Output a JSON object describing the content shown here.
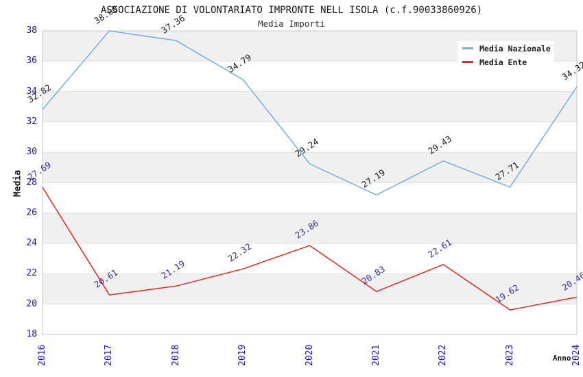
{
  "chart_data": {
    "type": "line",
    "title": "ASSOCIAZIONE DI VOLONTARIATO IMPRONTE NELL ISOLA (c.f.90033860926)",
    "subtitle": "Media Importi",
    "xlabel": "Anno",
    "ylabel": "Media",
    "x": [
      "2016",
      "2017",
      "2018",
      "2019",
      "2020",
      "2021",
      "2022",
      "2023",
      "2024"
    ],
    "series": [
      {
        "name": "Media Nazionale",
        "color": "#79ADE0",
        "label_color": "#1a1a1a",
        "values": [
          32.82,
          38.0,
          37.36,
          34.79,
          29.24,
          27.19,
          29.43,
          27.71,
          34.32
        ]
      },
      {
        "name": "Media Ente",
        "color": "#E82525",
        "label_color": "#333399",
        "values": [
          27.69,
          20.61,
          21.19,
          22.32,
          23.86,
          20.83,
          22.61,
          19.62,
          20.46
        ]
      }
    ],
    "ylim": [
      18,
      38
    ],
    "ytick_step": 2,
    "grid": "horizontal-bands",
    "band_colors": {
      "light": "#ffffff",
      "dark": "#f0f0f0"
    },
    "gridline_color": "#e2e2e2",
    "frame_color": "#c9c9c9",
    "tick_label_color": "#1515CE",
    "legend_position": "top-right"
  }
}
